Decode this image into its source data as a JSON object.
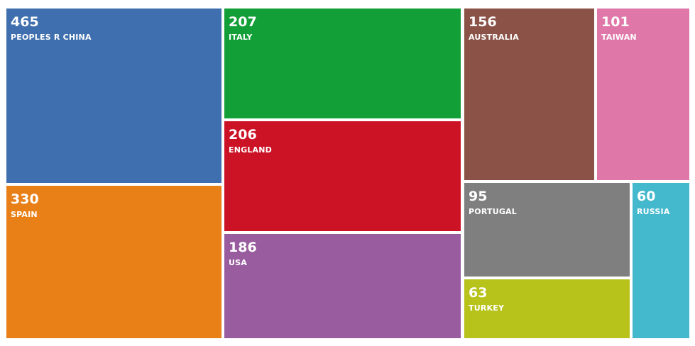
{
  "chart_data": {
    "type": "treemap",
    "items": [
      {
        "label": "PEOPLES R CHINA",
        "value": "465",
        "color": "#3f6fae"
      },
      {
        "label": "SPAIN",
        "value": "330",
        "color": "#e87f17"
      },
      {
        "label": "ITALY",
        "value": "207",
        "color": "#139f37"
      },
      {
        "label": "ENGLAND",
        "value": "206",
        "color": "#cc1326"
      },
      {
        "label": "USA",
        "value": "186",
        "color": "#995d9f"
      },
      {
        "label": "AUSTRALIA",
        "value": "156",
        "color": "#8b5347"
      },
      {
        "label": "TAIWAN",
        "value": "101",
        "color": "#df78a9"
      },
      {
        "label": "PORTUGAL",
        "value": "95",
        "color": "#7f7f7f"
      },
      {
        "label": "TURKEY",
        "value": "63",
        "color": "#b7c21b"
      },
      {
        "label": "RUSSIA",
        "value": "60",
        "color": "#44b8cd"
      }
    ]
  }
}
